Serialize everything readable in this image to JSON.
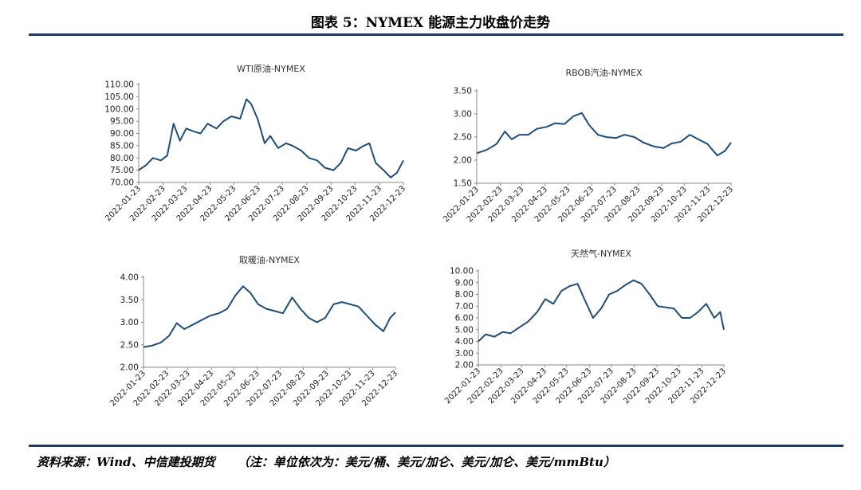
{
  "figure_title": "图表 5：NYMEX 能源主力收盘价走势",
  "source": "资料来源：Wind、中信建投期货",
  "note": "（注：单位依次为：美元/桶、美元/加仑、美元/加仑、美元/mmBtu）",
  "line_color": "#1f4e79",
  "chart_data": [
    {
      "type": "line",
      "title": "WTI原油-NYMEX",
      "x_ticks": [
        "2022-01-23",
        "2022-02-23",
        "2022-03-23",
        "2022-04-23",
        "2022-05-23",
        "2022-06-23",
        "2022-07-23",
        "2022-08-23",
        "2022-09-23",
        "2022-10-23",
        "2022-11-23",
        "2022-12-23"
      ],
      "y_ticks": [
        "110.00",
        "105.00",
        "100.00",
        "95.00",
        "90.00",
        "85.00",
        "80.00",
        "75.00",
        "70.00"
      ],
      "ylim": [
        70,
        110
      ],
      "series": [
        {
          "x": [
            "2022-01-23",
            "2022-02-01",
            "2022-02-10",
            "2022-02-20",
            "2022-02-28",
            "2022-03-08",
            "2022-03-16",
            "2022-03-24",
            "2022-04-01",
            "2022-04-11",
            "2022-04-20",
            "2022-05-01",
            "2022-05-10",
            "2022-05-20",
            "2022-05-31",
            "2022-06-08",
            "2022-06-14",
            "2022-06-22",
            "2022-07-01",
            "2022-07-08",
            "2022-07-18",
            "2022-07-28",
            "2022-08-05",
            "2022-08-16",
            "2022-08-26",
            "2022-09-05",
            "2022-09-15",
            "2022-09-26",
            "2022-10-05",
            "2022-10-14",
            "2022-10-24",
            "2022-11-03",
            "2022-11-10",
            "2022-11-18",
            "2022-11-28",
            "2022-12-07",
            "2022-12-15",
            "2022-12-23"
          ],
          "values": [
            75,
            77,
            80,
            79,
            81,
            94,
            87,
            92,
            91,
            90,
            94,
            92,
            95,
            97,
            96,
            104,
            102,
            96,
            86,
            89,
            84,
            86,
            85,
            83,
            80,
            79,
            76,
            75,
            78,
            84,
            83,
            85,
            86,
            78,
            75,
            72,
            74,
            79
          ]
        }
      ]
    },
    {
      "type": "line",
      "title": "RBOB汽油-NYMEX",
      "x_ticks": [
        "2022-01-23",
        "2022-02-23",
        "2022-03-23",
        "2022-04-23",
        "2022-05-23",
        "2022-06-23",
        "2022-07-23",
        "2022-08-23",
        "2022-09-23",
        "2022-10-23",
        "2022-11-23",
        "2022-12-23"
      ],
      "y_ticks": [
        "3.50",
        "3.00",
        "2.50",
        "2.00",
        "1.50"
      ],
      "ylim": [
        1.5,
        3.5
      ],
      "series": [
        {
          "x": [
            "2022-01-23",
            "2022-02-05",
            "2022-02-18",
            "2022-03-01",
            "2022-03-10",
            "2022-03-20",
            "2022-04-01",
            "2022-04-12",
            "2022-04-25",
            "2022-05-06",
            "2022-05-18",
            "2022-05-30",
            "2022-06-10",
            "2022-06-20",
            "2022-07-01",
            "2022-07-12",
            "2022-07-25",
            "2022-08-05",
            "2022-08-18",
            "2022-08-30",
            "2022-09-12",
            "2022-09-25",
            "2022-10-06",
            "2022-10-18",
            "2022-10-30",
            "2022-11-10",
            "2022-11-22",
            "2022-12-05",
            "2022-12-15",
            "2022-12-23"
          ],
          "values": [
            2.15,
            2.22,
            2.35,
            2.62,
            2.45,
            2.55,
            2.55,
            2.68,
            2.72,
            2.8,
            2.78,
            2.95,
            3.02,
            2.75,
            2.55,
            2.5,
            2.48,
            2.55,
            2.5,
            2.38,
            2.3,
            2.26,
            2.36,
            2.4,
            2.55,
            2.45,
            2.35,
            2.1,
            2.2,
            2.38
          ]
        }
      ]
    },
    {
      "type": "line",
      "title": "取暖油-NYMEX",
      "x_ticks": [
        "2022-01-23",
        "2022-02-23",
        "2022-03-23",
        "2022-04-23",
        "2022-05-23",
        "2022-06-23",
        "2022-07-23",
        "2022-08-23",
        "2022-09-23",
        "2022-10-23",
        "2022-11-23",
        "2022-12-23"
      ],
      "y_ticks": [
        "4.00",
        "3.50",
        "3.00",
        "2.50",
        "2.00"
      ],
      "ylim": [
        2.0,
        4.0
      ],
      "series": [
        {
          "x": [
            "2022-01-23",
            "2022-02-03",
            "2022-02-15",
            "2022-02-26",
            "2022-03-08",
            "2022-03-18",
            "2022-03-30",
            "2022-04-10",
            "2022-04-22",
            "2022-05-03",
            "2022-05-14",
            "2022-05-25",
            "2022-06-04",
            "2022-06-14",
            "2022-06-24",
            "2022-07-05",
            "2022-07-16",
            "2022-07-27",
            "2022-08-08",
            "2022-08-19",
            "2022-08-30",
            "2022-09-10",
            "2022-09-21",
            "2022-10-02",
            "2022-10-13",
            "2022-10-24",
            "2022-11-04",
            "2022-11-15",
            "2022-11-26",
            "2022-12-07",
            "2022-12-16",
            "2022-12-23"
          ],
          "values": [
            2.45,
            2.48,
            2.55,
            2.7,
            2.98,
            2.85,
            2.95,
            3.05,
            3.15,
            3.2,
            3.3,
            3.6,
            3.8,
            3.65,
            3.4,
            3.3,
            3.25,
            3.2,
            3.55,
            3.3,
            3.1,
            3.0,
            3.1,
            3.4,
            3.45,
            3.4,
            3.35,
            3.15,
            2.95,
            2.8,
            3.1,
            3.22
          ]
        }
      ]
    },
    {
      "type": "line",
      "title": "天然气-NYMEX",
      "x_ticks": [
        "2022-01-23",
        "2022-02-23",
        "2022-03-23",
        "2022-04-23",
        "2022-05-23",
        "2022-06-23",
        "2022-07-23",
        "2022-08-23",
        "2022-09-23",
        "2022-10-23",
        "2022-11-23",
        "2022-12-23"
      ],
      "y_ticks": [
        "10.00",
        "9.00",
        "8.00",
        "7.00",
        "6.00",
        "5.00",
        "4.00",
        "3.00",
        "2.00"
      ],
      "ylim": [
        2,
        10
      ],
      "series": [
        {
          "x": [
            "2022-01-23",
            "2022-02-02",
            "2022-02-14",
            "2022-02-25",
            "2022-03-08",
            "2022-03-20",
            "2022-04-01",
            "2022-04-13",
            "2022-04-24",
            "2022-05-05",
            "2022-05-16",
            "2022-05-27",
            "2022-06-07",
            "2022-06-17",
            "2022-06-28",
            "2022-07-09",
            "2022-07-20",
            "2022-07-31",
            "2022-08-11",
            "2022-08-22",
            "2022-09-02",
            "2022-09-13",
            "2022-09-24",
            "2022-10-05",
            "2022-10-16",
            "2022-10-27",
            "2022-11-07",
            "2022-11-18",
            "2022-11-29",
            "2022-12-10",
            "2022-12-18",
            "2022-12-23"
          ],
          "values": [
            4.0,
            4.6,
            4.4,
            4.8,
            4.7,
            5.2,
            5.7,
            6.5,
            7.6,
            7.2,
            8.3,
            8.7,
            8.9,
            7.5,
            6.0,
            6.8,
            8.0,
            8.3,
            8.8,
            9.2,
            8.9,
            8.0,
            7.0,
            6.9,
            6.8,
            6.0,
            6.0,
            6.5,
            7.2,
            6.0,
            6.5,
            5.0
          ]
        }
      ]
    }
  ]
}
